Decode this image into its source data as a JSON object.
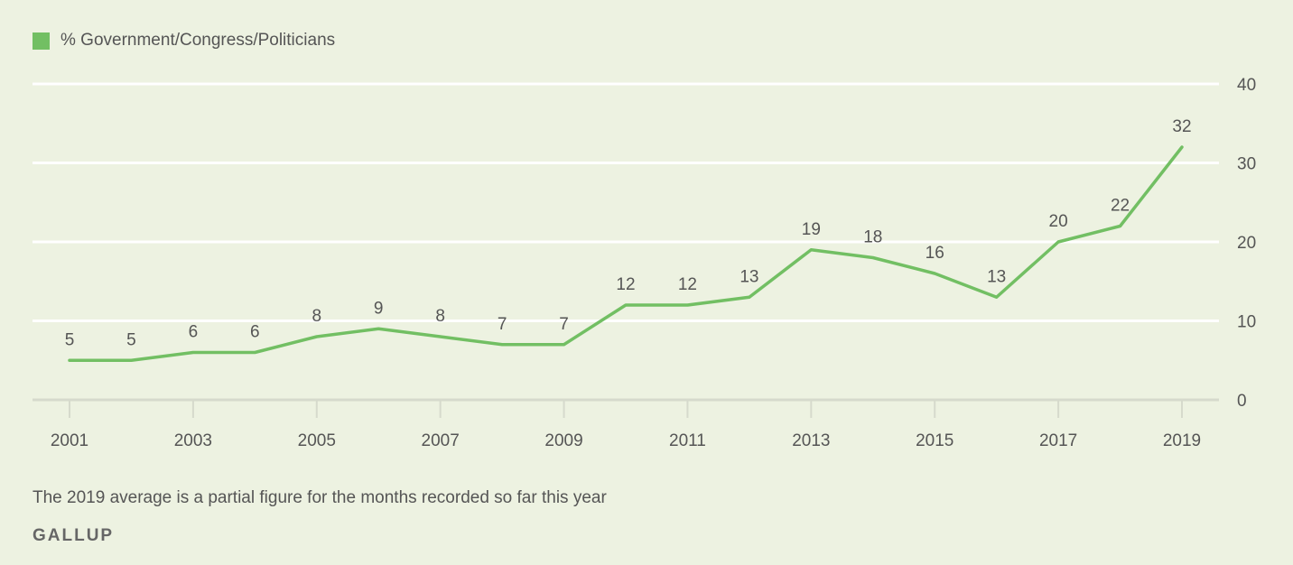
{
  "legend": {
    "label": "% Government/Congress/Politicians",
    "color": "#72bf63"
  },
  "chart_data": {
    "type": "line",
    "series": [
      {
        "name": "% Government/Congress/Politicians",
        "x": [
          2001,
          2002,
          2003,
          2004,
          2005,
          2006,
          2007,
          2008,
          2009,
          2010,
          2011,
          2012,
          2013,
          2014,
          2015,
          2016,
          2017,
          2018,
          2019
        ],
        "values": [
          5,
          5,
          6,
          6,
          8,
          9,
          8,
          7,
          7,
          12,
          12,
          13,
          19,
          18,
          16,
          13,
          20,
          22,
          32
        ]
      }
    ],
    "x_ticks": [
      "2001",
      "2003",
      "2005",
      "2007",
      "2009",
      "2011",
      "2013",
      "2015",
      "2017",
      "2019"
    ],
    "y_ticks": [
      "0",
      "10",
      "20",
      "30",
      "40"
    ],
    "ylim": [
      0,
      40
    ],
    "xlim": [
      2001,
      2019
    ],
    "grid": true,
    "legend_position": "top-left",
    "line_color": "#72bf63"
  },
  "footnote": "The 2019 average is a partial figure for the months recorded so far this year",
  "brand": "GALLUP"
}
